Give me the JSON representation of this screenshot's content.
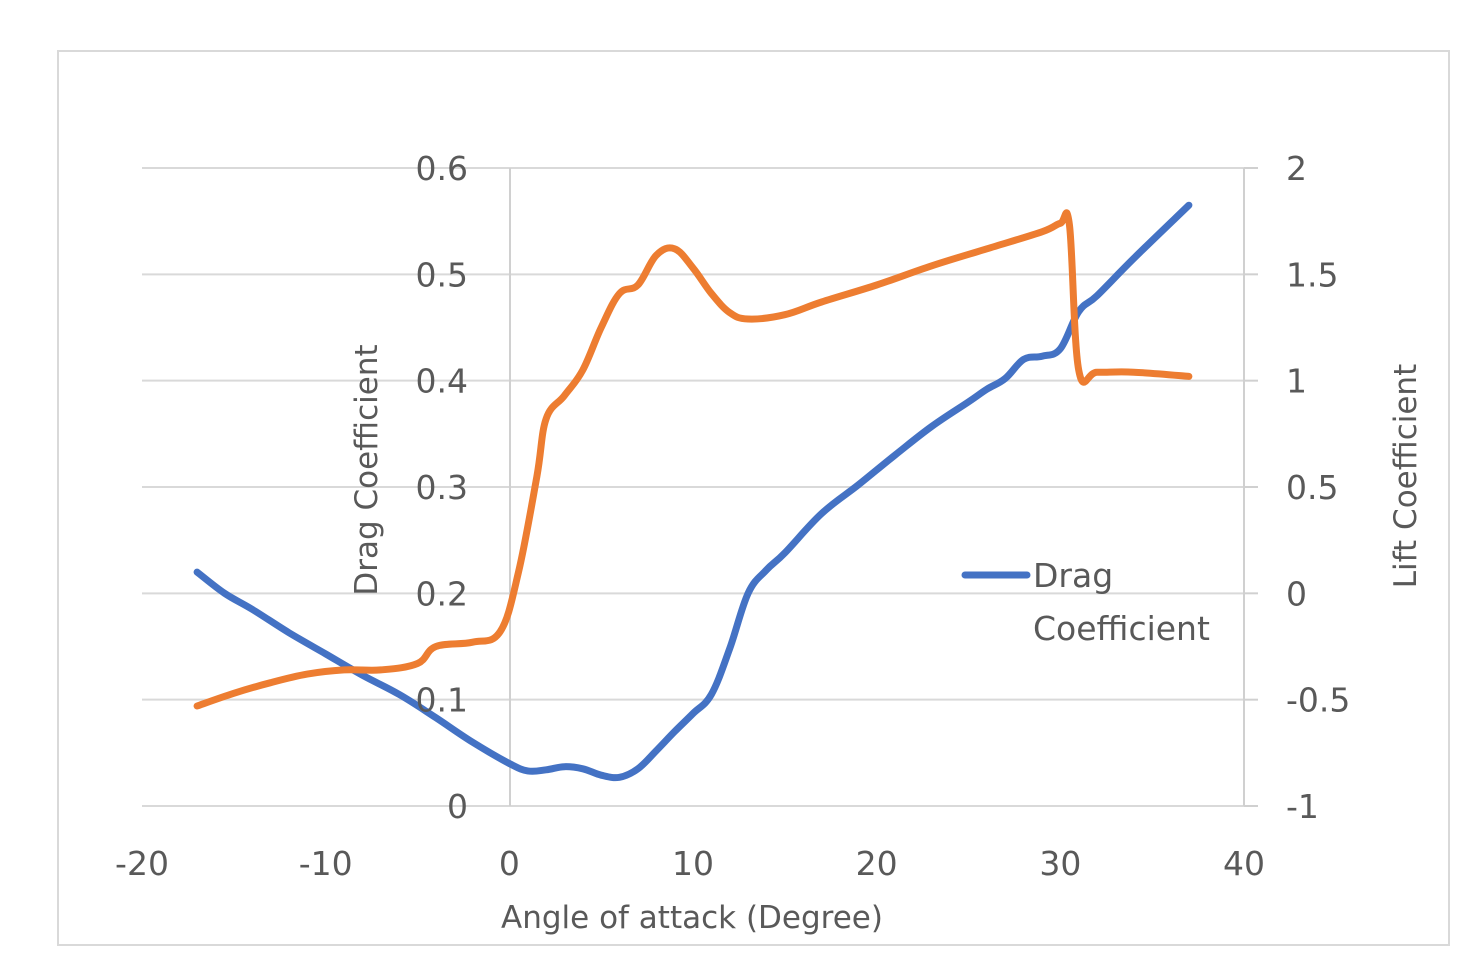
{
  "chart_data": {
    "type": "line",
    "title": "",
    "xlabel": "Angle of attack (Degree)",
    "ylabel": "Drag Coefficient",
    "y2label": "Lift Coefficient",
    "xlim": [
      -20,
      40
    ],
    "ylim": [
      0,
      0.6
    ],
    "y2lim": [
      -1,
      2
    ],
    "x_ticks": [
      "-20",
      "-10",
      "0",
      "10",
      "20",
      "30",
      "40"
    ],
    "y_ticks": [
      "0",
      "0.1",
      "0.2",
      "0.3",
      "0.4",
      "0.5",
      "0.6"
    ],
    "y2_ticks": [
      "-1",
      "-0.5",
      "0",
      "0.5",
      "1",
      "1.5",
      "2"
    ],
    "grid": true,
    "legend": {
      "position": "right",
      "entries": [
        {
          "name_line1": "Drag",
          "name_line2": "Coefficient",
          "color": "#4472c4"
        }
      ]
    },
    "series": [
      {
        "name": "Drag Coefficient",
        "axis": "left",
        "color": "#4472c4",
        "points": [
          [
            -17,
            0.22
          ],
          [
            -15.5,
            0.2
          ],
          [
            -14,
            0.185
          ],
          [
            -12,
            0.163
          ],
          [
            -10,
            0.143
          ],
          [
            -8,
            0.123
          ],
          [
            -6,
            0.105
          ],
          [
            -4,
            0.083
          ],
          [
            -2,
            0.06
          ],
          [
            0,
            0.04
          ],
          [
            1,
            0.033
          ],
          [
            2,
            0.034
          ],
          [
            3,
            0.037
          ],
          [
            4,
            0.035
          ],
          [
            5,
            0.029
          ],
          [
            6,
            0.027
          ],
          [
            7,
            0.035
          ],
          [
            8,
            0.052
          ],
          [
            9,
            0.07
          ],
          [
            10,
            0.087
          ],
          [
            11,
            0.105
          ],
          [
            12,
            0.148
          ],
          [
            13,
            0.2
          ],
          [
            14,
            0.222
          ],
          [
            15,
            0.238
          ],
          [
            17,
            0.275
          ],
          [
            19,
            0.302
          ],
          [
            21,
            0.33
          ],
          [
            23,
            0.357
          ],
          [
            25,
            0.38
          ],
          [
            26,
            0.392
          ],
          [
            27,
            0.402
          ],
          [
            28,
            0.42
          ],
          [
            29,
            0.423
          ],
          [
            30,
            0.43
          ],
          [
            31,
            0.465
          ],
          [
            32,
            0.48
          ],
          [
            34,
            0.515
          ],
          [
            37,
            0.565
          ]
        ]
      },
      {
        "name": "Lift Coefficient",
        "axis": "right",
        "color": "#ed7d31",
        "points": [
          [
            -17,
            -0.53
          ],
          [
            -15,
            -0.47
          ],
          [
            -13,
            -0.42
          ],
          [
            -11,
            -0.38
          ],
          [
            -9,
            -0.36
          ],
          [
            -7,
            -0.36
          ],
          [
            -5,
            -0.33
          ],
          [
            -4,
            -0.25
          ],
          [
            -2,
            -0.23
          ],
          [
            -0.5,
            -0.18
          ],
          [
            0.5,
            0.1
          ],
          [
            1.5,
            0.55
          ],
          [
            2,
            0.82
          ],
          [
            3,
            0.93
          ],
          [
            4,
            1.05
          ],
          [
            5,
            1.25
          ],
          [
            6,
            1.41
          ],
          [
            7,
            1.45
          ],
          [
            8,
            1.59
          ],
          [
            9,
            1.62
          ],
          [
            10,
            1.53
          ],
          [
            11,
            1.41
          ],
          [
            12,
            1.32
          ],
          [
            13,
            1.29
          ],
          [
            15,
            1.31
          ],
          [
            17,
            1.37
          ],
          [
            20,
            1.45
          ],
          [
            23,
            1.54
          ],
          [
            26,
            1.62
          ],
          [
            29,
            1.7
          ],
          [
            30,
            1.74
          ],
          [
            30.5,
            1.73
          ],
          [
            31,
            1.05
          ],
          [
            32,
            1.04
          ],
          [
            34,
            1.04
          ],
          [
            37,
            1.02
          ]
        ]
      }
    ]
  }
}
